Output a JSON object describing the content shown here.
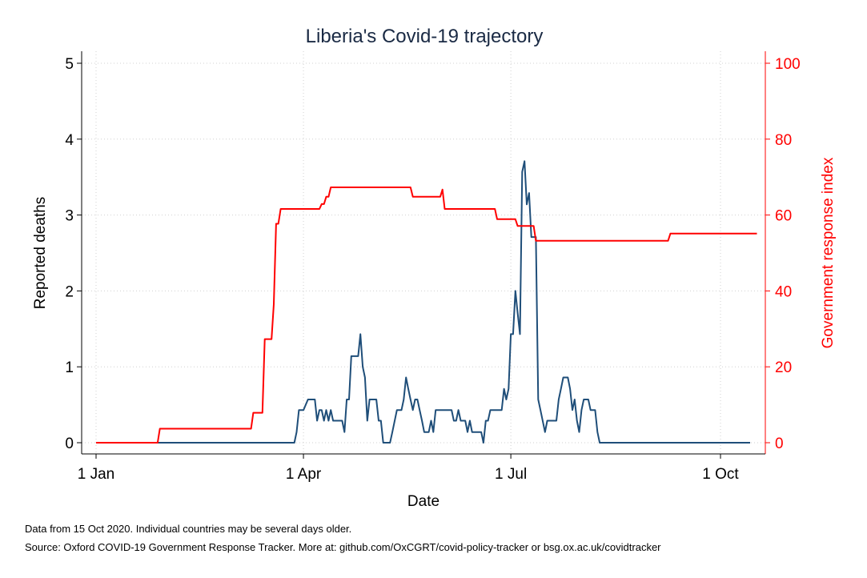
{
  "chart_data": {
    "type": "line",
    "title": "Liberia's Covid-19 trajectory",
    "xlabel": "Date",
    "ylabel_left": "Reported deaths",
    "ylabel_right": "Government response index",
    "x_ticks": [
      "1 Jan",
      "1 Apr",
      "1 Jul",
      "1 Oct"
    ],
    "x_tick_days": [
      0,
      91,
      182,
      274
    ],
    "y_left_ticks": [
      "0",
      "1",
      "2",
      "3",
      "4",
      "5"
    ],
    "y_left_range": [
      0,
      5
    ],
    "y_right_ticks": [
      "0",
      "20",
      "40",
      "60",
      "80",
      "100"
    ],
    "y_right_range": [
      0,
      100
    ],
    "x_range_days": [
      0,
      289
    ],
    "grid": true,
    "colors": {
      "deaths": "#1f4e79",
      "response": "#ff0000",
      "right_axis": "#ff0000",
      "title": "#1a2a44",
      "grid": "#d0d0d0"
    },
    "series": [
      {
        "name": "",
        "axis": "left",
        "points": [
          [
            "1 Jan",
            0
          ],
          [
            "28 Mar",
            0
          ],
          [
            "29 Mar",
            0.14
          ],
          [
            "30 Mar",
            0.43
          ],
          [
            "1 Apr",
            0.43
          ],
          [
            "3 Apr",
            0.57
          ],
          [
            "6 Apr",
            0.57
          ],
          [
            "7 Apr",
            0.29
          ],
          [
            "8 Apr",
            0.43
          ],
          [
            "9 Apr",
            0.43
          ],
          [
            "10 Apr",
            0.29
          ],
          [
            "11 Apr",
            0.43
          ],
          [
            "12 Apr",
            0.29
          ],
          [
            "13 Apr",
            0.43
          ],
          [
            "14 Apr",
            0.29
          ],
          [
            "18 Apr",
            0.29
          ],
          [
            "19 Apr",
            0.14
          ],
          [
            "20 Apr",
            0.57
          ],
          [
            "21 Apr",
            0.57
          ],
          [
            "22 Apr",
            1.14
          ],
          [
            "25 Apr",
            1.14
          ],
          [
            "26 Apr",
            1.43
          ],
          [
            "27 Apr",
            1.0
          ],
          [
            "28 Apr",
            0.86
          ],
          [
            "29 Apr",
            0.29
          ],
          [
            "30 Apr",
            0.57
          ],
          [
            "3 May",
            0.57
          ],
          [
            "4 May",
            0.29
          ],
          [
            "5 May",
            0.29
          ],
          [
            "6 May",
            0
          ],
          [
            "9 May",
            0
          ],
          [
            "10 May",
            0.14
          ],
          [
            "12 May",
            0.43
          ],
          [
            "14 May",
            0.43
          ],
          [
            "15 May",
            0.57
          ],
          [
            "16 May",
            0.86
          ],
          [
            "17 May",
            0.71
          ],
          [
            "18 May",
            0.57
          ],
          [
            "19 May",
            0.43
          ],
          [
            "20 May",
            0.57
          ],
          [
            "21 May",
            0.57
          ],
          [
            "22 May",
            0.43
          ],
          [
            "23 May",
            0.29
          ],
          [
            "24 May",
            0.14
          ],
          [
            "26 May",
            0.14
          ],
          [
            "27 May",
            0.29
          ],
          [
            "28 May",
            0.14
          ],
          [
            "29 May",
            0.43
          ],
          [
            "5 Jun",
            0.43
          ],
          [
            "6 Jun",
            0.29
          ],
          [
            "7 Jun",
            0.29
          ],
          [
            "8 Jun",
            0.43
          ],
          [
            "9 Jun",
            0.29
          ],
          [
            "11 Jun",
            0.29
          ],
          [
            "12 Jun",
            0.14
          ],
          [
            "13 Jun",
            0.29
          ],
          [
            "14 Jun",
            0.14
          ],
          [
            "18 Jun",
            0.14
          ],
          [
            "19 Jun",
            0
          ],
          [
            "20 Jun",
            0.29
          ],
          [
            "21 Jun",
            0.29
          ],
          [
            "22 Jun",
            0.43
          ],
          [
            "27 Jun",
            0.43
          ],
          [
            "28 Jun",
            0.71
          ],
          [
            "29 Jun",
            0.57
          ],
          [
            "30 Jun",
            0.71
          ],
          [
            "1 Jul",
            1.43
          ],
          [
            "2 Jul",
            1.43
          ],
          [
            "3 Jul",
            2.0
          ],
          [
            "4 Jul",
            1.71
          ],
          [
            "5 Jul",
            1.43
          ],
          [
            "6 Jul",
            3.57
          ],
          [
            "7 Jul",
            3.71
          ],
          [
            "8 Jul",
            3.14
          ],
          [
            "9 Jul",
            3.29
          ],
          [
            "10 Jul",
            2.71
          ],
          [
            "12 Jul",
            2.71
          ],
          [
            "13 Jul",
            0.57
          ],
          [
            "14 Jul",
            0.43
          ],
          [
            "16 Jul",
            0.14
          ],
          [
            "17 Jul",
            0.29
          ],
          [
            "21 Jul",
            0.29
          ],
          [
            "22 Jul",
            0.57
          ],
          [
            "23 Jul",
            0.71
          ],
          [
            "24 Jul",
            0.86
          ],
          [
            "26 Jul",
            0.86
          ],
          [
            "27 Jul",
            0.71
          ],
          [
            "28 Jul",
            0.43
          ],
          [
            "29 Jul",
            0.57
          ],
          [
            "30 Jul",
            0.29
          ],
          [
            "31 Jul",
            0.14
          ],
          [
            "1 Aug",
            0.43
          ],
          [
            "2 Aug",
            0.57
          ],
          [
            "4 Aug",
            0.57
          ],
          [
            "5 Aug",
            0.43
          ],
          [
            "7 Aug",
            0.43
          ],
          [
            "8 Aug",
            0.14
          ],
          [
            "9 Aug",
            0
          ],
          [
            "14 Oct",
            0
          ]
        ]
      },
      {
        "name": "",
        "axis": "right",
        "points": [
          [
            "1 Jan",
            0
          ],
          [
            "28 Jan",
            0
          ],
          [
            "29 Jan",
            3.7
          ],
          [
            "9 Mar",
            3.7
          ],
          [
            "10 Mar",
            7.9
          ],
          [
            "14 Mar",
            7.9
          ],
          [
            "15 Mar",
            27.3
          ],
          [
            "18 Mar",
            27.3
          ],
          [
            "19 Mar",
            36.5
          ],
          [
            "20 Mar",
            57.7
          ],
          [
            "21 Mar",
            57.7
          ],
          [
            "22 Mar",
            61.6
          ],
          [
            "8 Apr",
            61.6
          ],
          [
            "9 Apr",
            62.9
          ],
          [
            "10 Apr",
            62.9
          ],
          [
            "11 Apr",
            64.8
          ],
          [
            "12 Apr",
            64.8
          ],
          [
            "13 Apr",
            67.3
          ],
          [
            "18 May",
            67.3
          ],
          [
            "19 May",
            64.8
          ],
          [
            "31 May",
            64.8
          ],
          [
            "1 Jun",
            66.7
          ],
          [
            "2 Jun",
            61.6
          ],
          [
            "24 Jun",
            61.6
          ],
          [
            "25 Jun",
            58.9
          ],
          [
            "3 Jul",
            58.9
          ],
          [
            "4 Jul",
            57.1
          ],
          [
            "11 Jul",
            57.1
          ],
          [
            "12 Jul",
            53.2
          ],
          [
            "8 Sep",
            53.2
          ],
          [
            "9 Sep",
            55.1
          ],
          [
            "17 Oct",
            55.1
          ]
        ]
      }
    ]
  },
  "notes": {
    "line1": "Data from 15 Oct 2020. Individual countries may be several days older.",
    "line2": "Source: Oxford COVID-19 Government Response Tracker. More at: github.com/OxCGRT/covid-policy-tracker or bsg.ox.ac.uk/covidtracker"
  }
}
